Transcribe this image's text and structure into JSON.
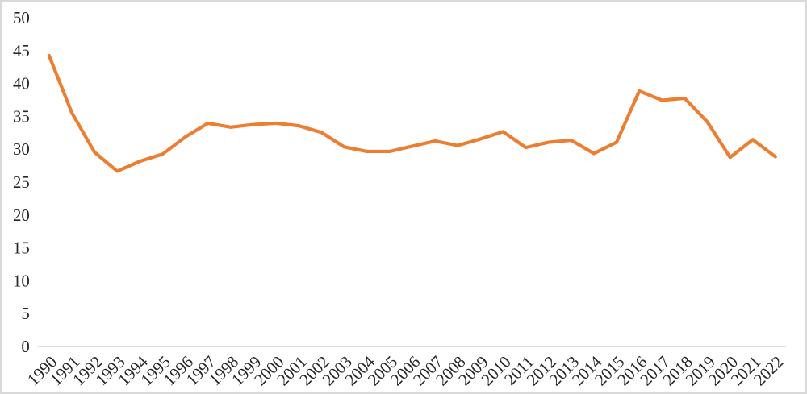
{
  "chart_data": {
    "type": "line",
    "title": "",
    "xlabel": "",
    "ylabel": "",
    "categories": [
      "1990",
      "1991",
      "1992",
      "1993",
      "1994",
      "1995",
      "1996",
      "1997",
      "1998",
      "1999",
      "2000",
      "2001",
      "2002",
      "2003",
      "2004",
      "2005",
      "2006",
      "2007",
      "2008",
      "2009",
      "2010",
      "2011",
      "2012",
      "2013",
      "2014",
      "2015",
      "2016",
      "2017",
      "2018",
      "2019",
      "2020",
      "2021",
      "2022"
    ],
    "values": [
      44.3,
      35.6,
      29.6,
      26.7,
      28.2,
      29.3,
      31.9,
      34.0,
      33.4,
      33.8,
      34.0,
      33.6,
      32.6,
      30.4,
      29.7,
      29.7,
      30.5,
      31.3,
      30.6,
      31.6,
      32.7,
      30.3,
      31.1,
      31.4,
      29.4,
      31.1,
      38.9,
      37.5,
      37.8,
      34.2,
      28.8,
      31.5,
      28.9
    ],
    "y_ticks": [
      0,
      5,
      10,
      15,
      20,
      25,
      30,
      35,
      40,
      45,
      50
    ],
    "ylim": [
      0,
      50
    ],
    "grid": false,
    "legend": "none",
    "x_label_rotation": -45,
    "colors": {
      "line": "#ED7D31",
      "axis_line": "#D9D9D9",
      "tick_label": "#262626",
      "frame_border": "#D9D9D9",
      "background": "#FFFFFF"
    }
  }
}
